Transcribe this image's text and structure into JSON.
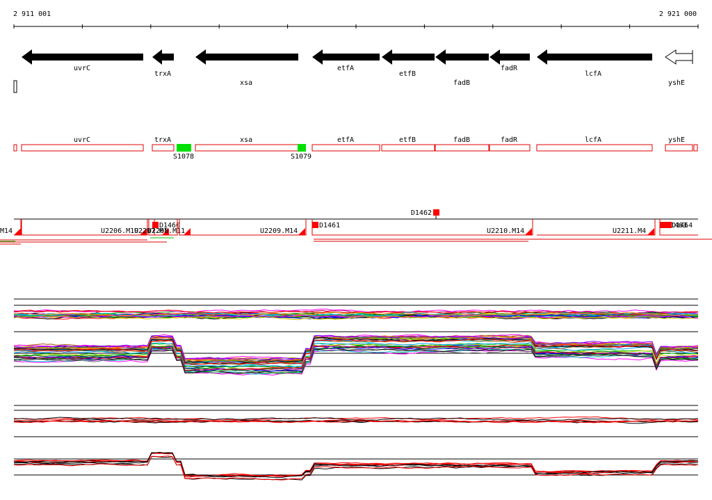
{
  "coordinates": {
    "start_label": "2 911 001",
    "end_label": "2 921 000"
  },
  "genes": [
    {
      "name": "uvrC",
      "strand": "-",
      "filled": true
    },
    {
      "name": "trxA",
      "strand": "-",
      "filled": true
    },
    {
      "name": "xsa",
      "strand": "-",
      "filled": true
    },
    {
      "name": "etfA",
      "strand": "-",
      "filled": true
    },
    {
      "name": "etfB",
      "strand": "-",
      "filled": true
    },
    {
      "name": "fadB",
      "strand": "-",
      "filled": true
    },
    {
      "name": "fadR",
      "strand": "-",
      "filled": true
    },
    {
      "name": "lcfA",
      "strand": "-",
      "filled": true
    },
    {
      "name": "yshE",
      "strand": "-",
      "filled": false
    }
  ],
  "features": {
    "gene_labels": [
      "uvrC",
      "trxA",
      "xsa",
      "etfA",
      "etfB",
      "fadB",
      "fadR",
      "lcfA",
      "yshE"
    ],
    "small_rnas": [
      "S1078",
      "S1079"
    ]
  },
  "transcripts": {
    "downshift_markers": [
      "D1462",
      "D1460",
      "D1461",
      "D1463",
      "D1464"
    ],
    "unit_labels": [
      "M14",
      "U2206.M19",
      "U2207.M1",
      "U2208.M11",
      "U2209.M14",
      "U2210.M14",
      "U2211.M4"
    ]
  },
  "colors": {
    "gene_fill": "#000000",
    "feature_outline": "#e00000",
    "srna": "#00e000",
    "marker": "#ff0000",
    "axis": "#000000"
  }
}
